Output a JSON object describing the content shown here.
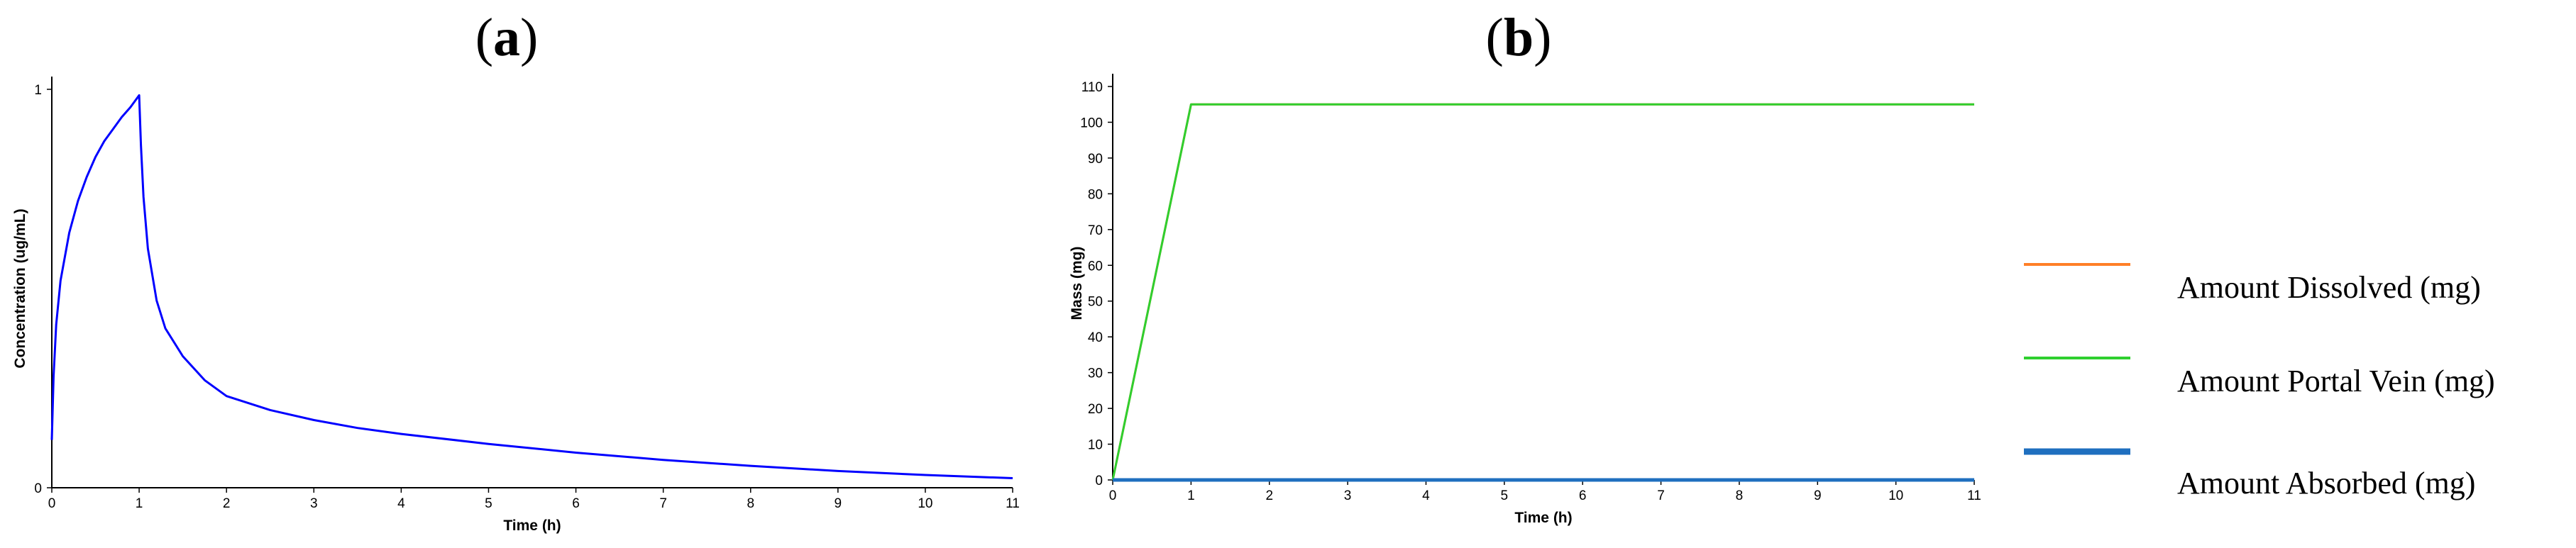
{
  "panels": {
    "a": {
      "label_open": "(",
      "label_letter": "a",
      "label_close": ")"
    },
    "b": {
      "label_open": "(",
      "label_letter": "b",
      "label_close": ")"
    }
  },
  "legend": [
    {
      "label": "Amount Dissolved (mg)",
      "color": "#ff7f27"
    },
    {
      "label": "Amount Portal Vein (mg)",
      "color": "#2fcf2f"
    },
    {
      "label": "Amount Absorbed (mg)",
      "color": "#1f6fbf"
    }
  ],
  "chart_data": [
    {
      "panel": "a",
      "type": "line",
      "title": "",
      "xlabel": "Time (h)",
      "ylabel": "Concentration (ug/mL)",
      "xlim": [
        0,
        11
      ],
      "ylim": [
        0,
        1
      ],
      "xticks": [
        0,
        1,
        2,
        3,
        4,
        5,
        6,
        7,
        8,
        9,
        10,
        11
      ],
      "yticks": [
        0,
        1
      ],
      "grid": false,
      "series": [
        {
          "color": "#0000ff",
          "x": [
            0,
            0.02,
            0.05,
            0.1,
            0.2,
            0.3,
            0.4,
            0.5,
            0.6,
            0.7,
            0.8,
            0.9,
            1.0,
            1.02,
            1.05,
            1.1,
            1.2,
            1.3,
            1.5,
            1.75,
            2,
            2.5,
            3,
            3.5,
            4,
            5,
            6,
            7,
            8,
            9,
            10,
            11
          ],
          "y": [
            0.12,
            0.28,
            0.41,
            0.52,
            0.64,
            0.72,
            0.78,
            0.83,
            0.87,
            0.9,
            0.93,
            0.955,
            0.985,
            0.86,
            0.73,
            0.6,
            0.47,
            0.4,
            0.33,
            0.27,
            0.23,
            0.195,
            0.17,
            0.15,
            0.135,
            0.11,
            0.088,
            0.07,
            0.055,
            0.042,
            0.032,
            0.024
          ]
        }
      ]
    },
    {
      "panel": "b",
      "type": "line",
      "title": "",
      "xlabel": "Time (h)",
      "ylabel": "Mass (mg)",
      "xlim": [
        0,
        11
      ],
      "ylim": [
        0,
        110
      ],
      "xticks": [
        0,
        1,
        2,
        3,
        4,
        5,
        6,
        7,
        8,
        9,
        10,
        11
      ],
      "yticks": [
        0,
        10,
        20,
        30,
        40,
        50,
        60,
        70,
        80,
        90,
        100,
        110
      ],
      "grid": false,
      "legend_position": "right",
      "series": [
        {
          "name": "Amount Dissolved (mg)",
          "color": "#ff7f27",
          "x": [
            0,
            1,
            11
          ],
          "y": [
            0,
            105,
            105
          ]
        },
        {
          "name": "Amount Portal Vein (mg)",
          "color": "#2fcf2f",
          "x": [
            0,
            1,
            11
          ],
          "y": [
            0,
            105,
            105
          ]
        },
        {
          "name": "Amount Absorbed (mg)",
          "color": "#1f6fbf",
          "x": [
            0,
            11
          ],
          "y": [
            0,
            0
          ]
        }
      ]
    }
  ]
}
